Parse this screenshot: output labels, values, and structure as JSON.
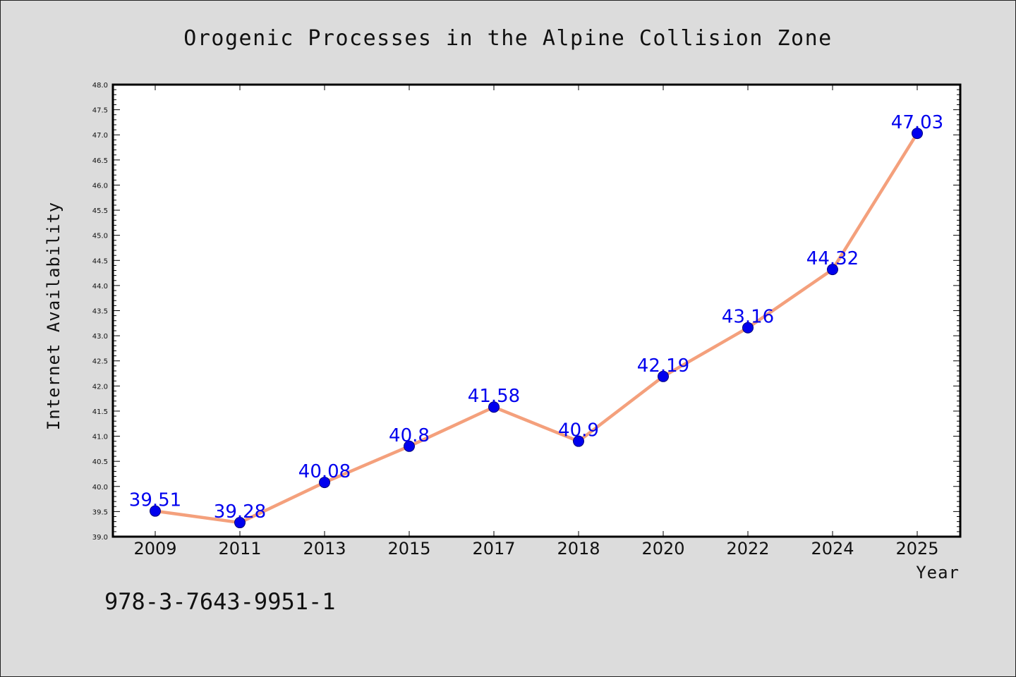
{
  "chart_data": {
    "type": "line",
    "title": "Orogenic Processes in the Alpine Collision Zone",
    "xlabel": "Year",
    "ylabel": "Internet Availability",
    "categories": [
      "2009",
      "2011",
      "2013",
      "2015",
      "2017",
      "2018",
      "2020",
      "2022",
      "2024",
      "2025"
    ],
    "series": [
      {
        "values": [
          39.51,
          39.28,
          40.08,
          40.8,
          41.58,
          40.9,
          42.19,
          43.16,
          44.32,
          47.03
        ],
        "labels": [
          "39.51",
          "39.28",
          "40.08",
          "40.8",
          "41.58",
          "40.9",
          "42.19",
          "43.16",
          "44.32",
          "47.03"
        ]
      }
    ],
    "ylim": [
      39.0,
      48.0
    ],
    "yticks": [
      "39.0",
      "39.5",
      "40.0",
      "40.5",
      "41.0",
      "41.5",
      "42.0",
      "42.5",
      "43.0",
      "43.5",
      "44.0",
      "44.5",
      "45.0",
      "45.5",
      "46.0",
      "46.5",
      "47.0",
      "47.5",
      "48.0"
    ],
    "grid": false,
    "line_color": "#f4a07c",
    "marker_color": "#0000ee",
    "label_color": "#0000ee"
  },
  "caption": "978-3-7643-9951-1"
}
